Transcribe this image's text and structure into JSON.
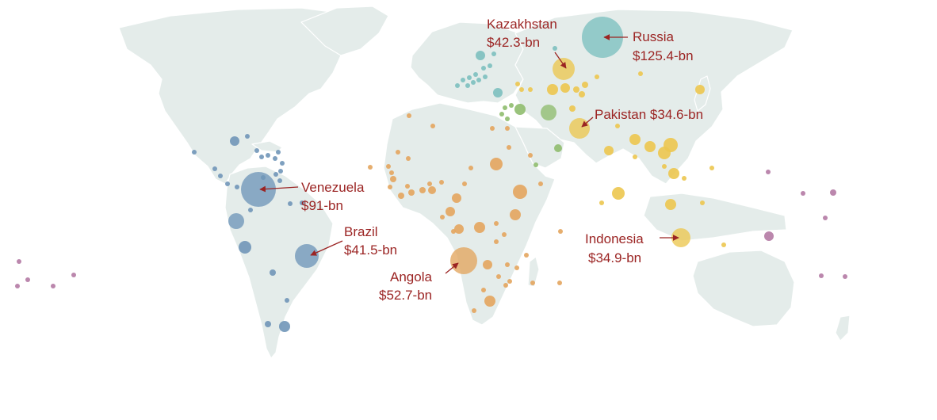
{
  "colors": {
    "land": "#e4ecea",
    "annotation": "#9b2423",
    "regions": {
      "americas": "#7096b8",
      "africa": "#e3a55e",
      "asia": "#ecc64f",
      "europe_central_asia": "#7cc0bf",
      "middle_east": "#8fbd6e",
      "pacific": "#b47aa4"
    }
  },
  "annotations": {
    "russia": {
      "name": "Russia",
      "amount": "$125.4-bn"
    },
    "kazakhstan": {
      "name": "Kazakhstan",
      "amount": "$42.3-bn"
    },
    "pakistan": {
      "name": "Pakistan",
      "amount": "$34.6-bn",
      "label": "Pakistan $34.6-bn"
    },
    "venezuela": {
      "name": "Venezuela",
      "amount": "$91-bn"
    },
    "brazil": {
      "name": "Brazil",
      "amount": "$41.5-bn"
    },
    "angola": {
      "name": "Angola",
      "amount": "$52.7-bn"
    },
    "indonesia": {
      "name": "Indonesia",
      "amount": "$34.9-bn"
    }
  }
}
